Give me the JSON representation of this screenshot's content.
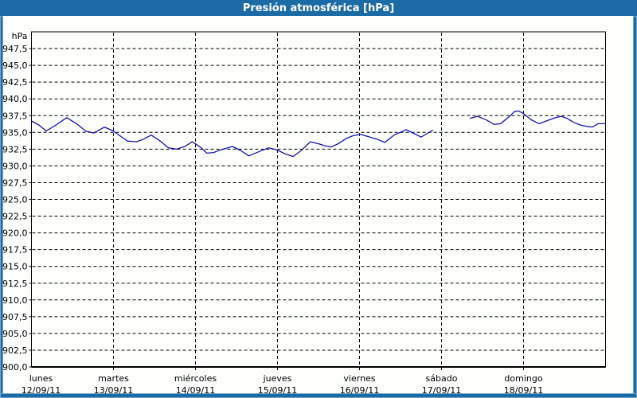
{
  "window": {
    "title": "Presión atmosférica [hPa]"
  },
  "colors": {
    "titlebar": "#1d6ba6",
    "frame": "#1d6ba6",
    "frame_inner": "#6ea9cf",
    "title_text": "#ffffff",
    "background": "#fdfffd",
    "plot_bg": "#fdfffd",
    "grid": "#000000",
    "axis": "#000000",
    "label_text": "#000000",
    "line": "#1414aa"
  },
  "chart_data": {
    "type": "line",
    "title": "Presión atmosférica [hPa]",
    "ylabel": "hPa",
    "unit_label": "hPa",
    "ylim": [
      900,
      950
    ],
    "ytick_step": 2.5,
    "yticks": [
      900,
      902.5,
      905,
      907.5,
      910,
      912.5,
      915,
      917.5,
      920,
      922.5,
      925,
      927.5,
      930,
      932.5,
      935,
      937.5,
      940,
      942.5,
      945,
      947.5
    ],
    "ytick_labels": [
      "900,0",
      "902,5",
      "905,0",
      "907,5",
      "910,0",
      "912,5",
      "915,0",
      "917,5",
      "920,0",
      "922,5",
      "925,0",
      "927,5",
      "930,0",
      "932,5",
      "935,0",
      "937,5",
      "940,0",
      "942,5",
      "945,0",
      "947,5"
    ],
    "grid": "dashed",
    "legend": "none",
    "xlim_days": [
      0,
      7
    ],
    "x_axis": {
      "days": [
        {
          "name": "lunes",
          "date": "12/09/11",
          "day_index": 0
        },
        {
          "name": "martes",
          "date": "13/09/11",
          "day_index": 1
        },
        {
          "name": "miércoles",
          "date": "14/09/11",
          "day_index": 2
        },
        {
          "name": "jueves",
          "date": "15/09/11",
          "day_index": 3
        },
        {
          "name": "viernes",
          "date": "16/09/11",
          "day_index": 4
        },
        {
          "name": "sábado",
          "date": "17/09/11",
          "day_index": 5
        },
        {
          "name": "domingo",
          "date": "18/09/11",
          "day_index": 6
        }
      ]
    },
    "series": [
      {
        "name": "Presión atmosférica",
        "color": "#1414aa",
        "note": "x in days since lunes 12/09 00:00, y in hPa; gap = missing data sábado morning",
        "segments": [
          [
            [
              0.0,
              936.7
            ],
            [
              0.09,
              936.1
            ],
            [
              0.18,
              935.2
            ],
            [
              0.3,
              936.1
            ],
            [
              0.43,
              937.2
            ],
            [
              0.55,
              936.3
            ],
            [
              0.66,
              935.2
            ],
            [
              0.76,
              934.9
            ],
            [
              0.89,
              935.8
            ],
            [
              1.0,
              935.2
            ],
            [
              1.09,
              934.4
            ],
            [
              1.17,
              933.7
            ],
            [
              1.28,
              933.6
            ],
            [
              1.37,
              934.0
            ],
            [
              1.46,
              934.6
            ],
            [
              1.56,
              933.8
            ],
            [
              1.67,
              932.7
            ],
            [
              1.77,
              932.5
            ],
            [
              1.87,
              932.9
            ],
            [
              1.96,
              933.6
            ],
            [
              2.06,
              932.8
            ],
            [
              2.14,
              931.9
            ],
            [
              2.22,
              932.0
            ],
            [
              2.31,
              932.4
            ],
            [
              2.45,
              932.9
            ],
            [
              2.55,
              932.3
            ],
            [
              2.65,
              931.5
            ],
            [
              2.77,
              932.1
            ],
            [
              2.89,
              932.7
            ],
            [
              2.96,
              932.5
            ],
            [
              3.01,
              932.3
            ],
            [
              3.09,
              931.8
            ],
            [
              3.19,
              931.4
            ],
            [
              3.29,
              932.3
            ],
            [
              3.4,
              933.6
            ],
            [
              3.5,
              933.3
            ],
            [
              3.58,
              933.0
            ],
            [
              3.65,
              932.8
            ],
            [
              3.74,
              933.3
            ],
            [
              3.84,
              934.1
            ],
            [
              3.92,
              934.5
            ],
            [
              4.01,
              934.7
            ],
            [
              4.1,
              934.4
            ],
            [
              4.21,
              934.0
            ],
            [
              4.31,
              933.5
            ],
            [
              4.42,
              934.6
            ],
            [
              4.57,
              935.4
            ],
            [
              4.67,
              934.8
            ],
            [
              4.75,
              934.3
            ],
            [
              4.82,
              934.8
            ],
            [
              4.89,
              935.3
            ]
          ],
          [
            [
              5.35,
              937.1
            ],
            [
              5.44,
              937.4
            ],
            [
              5.54,
              936.9
            ],
            [
              5.64,
              936.2
            ],
            [
              5.72,
              936.3
            ],
            [
              5.81,
              937.2
            ],
            [
              5.89,
              938.1
            ],
            [
              5.94,
              938.2
            ],
            [
              6.0,
              937.8
            ],
            [
              6.09,
              936.9
            ],
            [
              6.19,
              936.3
            ],
            [
              6.3,
              936.8
            ],
            [
              6.39,
              937.2
            ],
            [
              6.46,
              937.4
            ],
            [
              6.53,
              937.1
            ],
            [
              6.61,
              936.5
            ],
            [
              6.69,
              936.1
            ],
            [
              6.77,
              935.9
            ],
            [
              6.84,
              935.8
            ],
            [
              6.91,
              936.3
            ],
            [
              7.0,
              936.3
            ]
          ]
        ]
      }
    ]
  }
}
